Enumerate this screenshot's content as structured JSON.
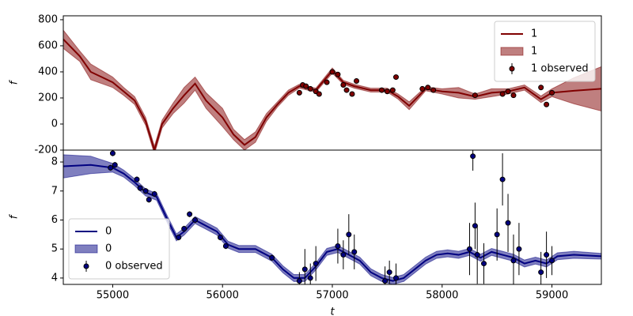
{
  "chart_data": [
    {
      "type": "line",
      "ylabel": "f",
      "xlim": [
        54550,
        59450
      ],
      "ylim": [
        -200,
        830
      ],
      "yticks": [
        -200,
        0,
        200,
        400,
        600,
        800
      ],
      "legend": "upper right",
      "series": [
        {
          "name": "1",
          "kind": "line",
          "color": "#800000",
          "x": [
            54550,
            54700,
            54800,
            55000,
            55100,
            55200,
            55300,
            55380,
            55450,
            55550,
            55650,
            55750,
            55850,
            56000,
            56100,
            56200,
            56300,
            56400,
            56500,
            56600,
            56700,
            56850,
            57000,
            57100,
            57200,
            57350,
            57500,
            57600,
            57700,
            57850,
            58000,
            58150,
            58300,
            58450,
            58600,
            58750,
            58900,
            59000,
            59200,
            59450
          ],
          "values": [
            650,
            520,
            400,
            320,
            250,
            180,
            20,
            -200,
            0,
            120,
            220,
            310,
            180,
            50,
            -80,
            -160,
            -100,
            50,
            150,
            240,
            290,
            260,
            410,
            320,
            290,
            260,
            260,
            210,
            140,
            270,
            250,
            240,
            210,
            240,
            250,
            280,
            190,
            240,
            255,
            270
          ]
        },
        {
          "name": "1",
          "kind": "band",
          "color": "#800000",
          "alpha": 0.5,
          "x": [
            54550,
            54700,
            54800,
            55000,
            55100,
            55200,
            55300,
            55380,
            55450,
            55550,
            55650,
            55750,
            55850,
            56000,
            56100,
            56200,
            56300,
            56400,
            56500,
            56600,
            56700,
            56850,
            57000,
            57100,
            57200,
            57350,
            57500,
            57600,
            57700,
            57850,
            58000,
            58150,
            58300,
            58450,
            58600,
            58750,
            58900,
            59000,
            59200,
            59450
          ],
          "lower": [
            580,
            480,
            340,
            280,
            220,
            150,
            -10,
            -230,
            -30,
            80,
            160,
            260,
            120,
            -20,
            -120,
            -200,
            -140,
            20,
            130,
            220,
            275,
            245,
            390,
            305,
            275,
            245,
            245,
            190,
            110,
            255,
            230,
            200,
            190,
            210,
            230,
            260,
            165,
            210,
            155,
            100
          ],
          "upper": [
            720,
            560,
            460,
            360,
            280,
            210,
            50,
            -170,
            30,
            160,
            280,
            360,
            240,
            120,
            -40,
            -120,
            -60,
            80,
            170,
            260,
            305,
            275,
            430,
            335,
            305,
            275,
            275,
            230,
            170,
            285,
            270,
            280,
            230,
            270,
            270,
            300,
            215,
            270,
            355,
            440
          ]
        },
        {
          "name": "1 observed",
          "kind": "errorbar",
          "color": "#800000",
          "x": [
            56700,
            56730,
            56760,
            56800,
            56850,
            56880,
            56950,
            57000,
            57050,
            57100,
            57130,
            57180,
            57220,
            57450,
            57500,
            57550,
            57580,
            57820,
            57870,
            57920,
            58300,
            58550,
            58600,
            58650,
            58900,
            58950,
            59000
          ],
          "values": [
            240,
            300,
            290,
            270,
            250,
            230,
            320,
            400,
            380,
            300,
            260,
            230,
            330,
            260,
            250,
            260,
            360,
            270,
            280,
            260,
            220,
            230,
            250,
            220,
            280,
            150,
            240
          ],
          "errors": [
            12,
            12,
            12,
            12,
            12,
            12,
            12,
            12,
            12,
            12,
            12,
            12,
            12,
            12,
            12,
            12,
            12,
            12,
            12,
            12,
            12,
            12,
            12,
            12,
            12,
            12,
            12
          ]
        }
      ]
    },
    {
      "type": "line",
      "ylabel": "f",
      "xlabel": "t",
      "xlim": [
        54550,
        59450
      ],
      "ylim": [
        3.78,
        8.41
      ],
      "xticks": [
        55000,
        56000,
        57000,
        58000,
        59000
      ],
      "yticks": [
        4,
        5,
        6,
        7,
        8
      ],
      "legend": "lower left",
      "series": [
        {
          "name": "0",
          "kind": "line",
          "color": "#000080",
          "x": [
            54550,
            54800,
            55000,
            55100,
            55200,
            55300,
            55400,
            55500,
            55580,
            55650,
            55750,
            55850,
            55950,
            56050,
            56150,
            56300,
            56450,
            56550,
            56650,
            56750,
            56850,
            56950,
            57050,
            57150,
            57250,
            57350,
            57450,
            57550,
            57650,
            57750,
            57850,
            57950,
            58050,
            58150,
            58250,
            58350,
            58450,
            58550,
            58650,
            58750,
            58850,
            58950,
            59050,
            59200,
            59450
          ],
          "values": [
            7.85,
            7.9,
            7.8,
            7.6,
            7.3,
            6.95,
            6.8,
            6.0,
            5.4,
            5.6,
            6.0,
            5.8,
            5.6,
            5.15,
            5.0,
            5.0,
            4.7,
            4.3,
            4.0,
            4.0,
            4.4,
            4.9,
            5.0,
            4.8,
            4.6,
            4.2,
            4.0,
            3.9,
            4.0,
            4.3,
            4.6,
            4.8,
            4.85,
            4.8,
            4.9,
            4.7,
            4.9,
            4.8,
            4.7,
            4.5,
            4.6,
            4.5,
            4.75,
            4.8,
            4.75
          ]
        },
        {
          "name": "0",
          "kind": "band",
          "color": "#000080",
          "alpha": 0.5,
          "x": [
            54550,
            54800,
            55000,
            55100,
            55200,
            55300,
            55400,
            55500,
            55580,
            55650,
            55750,
            55850,
            55950,
            56050,
            56150,
            56300,
            56450,
            56550,
            56650,
            56750,
            56850,
            56950,
            57050,
            57150,
            57250,
            57350,
            57450,
            57550,
            57650,
            57750,
            57850,
            57950,
            58050,
            58150,
            58250,
            58350,
            58450,
            58550,
            58650,
            58750,
            58850,
            58950,
            59050,
            59200,
            59450
          ],
          "lower": [
            7.45,
            7.6,
            7.65,
            7.48,
            7.18,
            6.83,
            6.68,
            5.88,
            5.28,
            5.48,
            5.88,
            5.68,
            5.48,
            5.03,
            4.88,
            4.88,
            4.58,
            4.18,
            3.88,
            3.88,
            4.28,
            4.78,
            4.88,
            4.68,
            4.48,
            4.08,
            3.88,
            3.78,
            3.88,
            4.18,
            4.48,
            4.68,
            4.73,
            4.68,
            4.78,
            4.58,
            4.78,
            4.68,
            4.58,
            4.38,
            4.48,
            4.38,
            4.63,
            4.68,
            4.65
          ],
          "upper": [
            8.25,
            8.2,
            7.95,
            7.72,
            7.42,
            7.07,
            6.92,
            6.12,
            5.52,
            5.72,
            6.12,
            5.92,
            5.72,
            5.27,
            5.12,
            5.12,
            4.82,
            4.42,
            4.12,
            4.12,
            4.52,
            5.02,
            5.12,
            4.92,
            4.72,
            4.32,
            4.12,
            4.02,
            4.12,
            4.42,
            4.72,
            4.92,
            4.97,
            4.92,
            5.02,
            4.82,
            5.02,
            4.92,
            4.82,
            4.62,
            4.72,
            4.62,
            4.87,
            4.92,
            4.85
          ]
        },
        {
          "name": "0 observed",
          "kind": "errorbar",
          "color": "#000080",
          "x": [
            54980,
            55000,
            55020,
            55220,
            55250,
            55300,
            55330,
            55380,
            55600,
            55650,
            55700,
            55750,
            55980,
            56030,
            56450,
            56700,
            56750,
            56800,
            56850,
            57050,
            57100,
            57150,
            57200,
            57480,
            57520,
            57580,
            58250,
            58280,
            58300,
            58320,
            58380,
            58500,
            58550,
            58600,
            58650,
            58700,
            58900,
            58950,
            59000
          ],
          "values": [
            7.8,
            8.3,
            7.9,
            7.4,
            7.1,
            7.0,
            6.7,
            6.9,
            5.4,
            5.7,
            6.2,
            6.0,
            5.4,
            5.1,
            4.7,
            3.9,
            4.3,
            4.0,
            4.5,
            5.1,
            4.8,
            5.5,
            4.9,
            3.9,
            4.2,
            4.0,
            5.0,
            8.2,
            5.8,
            4.8,
            4.5,
            5.5,
            7.4,
            5.9,
            4.6,
            5.0,
            4.2,
            4.8,
            4.6
          ],
          "errors": [
            0.1,
            0.1,
            0.1,
            0.1,
            0.1,
            0.1,
            0.1,
            0.1,
            0.1,
            0.1,
            0.1,
            0.1,
            0.1,
            0.1,
            0.1,
            0.3,
            0.7,
            0.5,
            0.6,
            0.6,
            0.5,
            0.7,
            0.6,
            0.5,
            0.4,
            0.5,
            0.9,
            0.5,
            0.8,
            1.0,
            0.7,
            0.9,
            0.9,
            1.0,
            0.9,
            0.9,
            0.7,
            0.8,
            0.5
          ]
        }
      ]
    }
  ]
}
